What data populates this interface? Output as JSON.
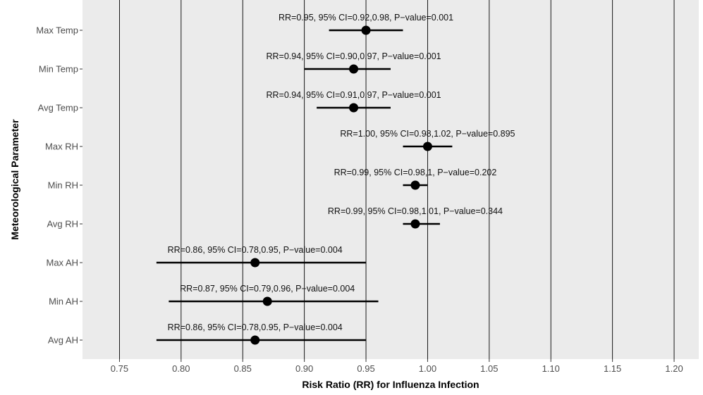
{
  "chart_data": {
    "type": "scatter",
    "subtype": "forest-plot",
    "title": "",
    "xlabel": "Risk Ratio (RR) for Influenza Infection",
    "ylabel": "Meteorological Parameter",
    "xlim": [
      0.72,
      1.22
    ],
    "x_ticks": [
      0.75,
      0.8,
      0.85,
      0.9,
      0.95,
      1.0,
      1.05,
      1.1,
      1.15,
      1.2
    ],
    "x_tick_labels": [
      "0.75",
      "0.80",
      "0.85",
      "0.90",
      "0.95",
      "1.00",
      "1.05",
      "1.10",
      "1.15",
      "1.20"
    ],
    "grid": "vertical major lines",
    "legend": "none",
    "colors": {
      "panel": "#ebebeb",
      "grid": "#000000",
      "point": "#000000"
    },
    "categories": [
      "Max Temp",
      "Min Temp",
      "Avg Temp",
      "Max RH",
      "Min RH",
      "Avg RH",
      "Max AH",
      "Min AH",
      "Avg AH"
    ],
    "points": [
      {
        "label": "Max Temp",
        "rr": 0.95,
        "lower": 0.92,
        "upper": 0.98,
        "annotation": "RR=0.95, 95% CI=0.92,0.98, P−value=0.001"
      },
      {
        "label": "Min Temp",
        "rr": 0.94,
        "lower": 0.9,
        "upper": 0.97,
        "annotation": "RR=0.94, 95% CI=0.90,0.97, P−value=0.001"
      },
      {
        "label": "Avg Temp",
        "rr": 0.94,
        "lower": 0.91,
        "upper": 0.97,
        "annotation": "RR=0.94, 95% CI=0.91,0.97, P−value=0.001"
      },
      {
        "label": "Max RH",
        "rr": 1.0,
        "lower": 0.98,
        "upper": 1.02,
        "annotation": "RR=1.00, 95% CI=0.98,1.02, P−value=0.895"
      },
      {
        "label": "Min RH",
        "rr": 0.99,
        "lower": 0.98,
        "upper": 1.0,
        "annotation": "RR=0.99, 95% CI=0.98,1, P−value=0.202"
      },
      {
        "label": "Avg RH",
        "rr": 0.99,
        "lower": 0.98,
        "upper": 1.01,
        "annotation": "RR=0.99, 95% CI=0.98,1.01, P−value=0.344"
      },
      {
        "label": "Max AH",
        "rr": 0.86,
        "lower": 0.78,
        "upper": 0.95,
        "annotation": "RR=0.86, 95% CI=0.78,0.95, P−value=0.004"
      },
      {
        "label": "Min AH",
        "rr": 0.87,
        "lower": 0.79,
        "upper": 0.96,
        "annotation": "RR=0.87, 95% CI=0.79,0.96, P−value=0.004"
      },
      {
        "label": "Avg AH",
        "rr": 0.86,
        "lower": 0.78,
        "upper": 0.95,
        "annotation": "RR=0.86, 95% CI=0.78,0.95, P−value=0.004"
      }
    ]
  }
}
